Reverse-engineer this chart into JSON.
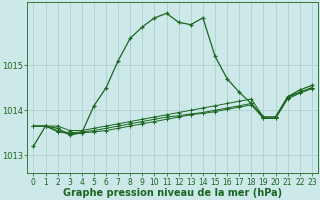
{
  "title": "Graphe pression niveau de la mer (hPa)",
  "xlabel_ticks": [
    0,
    1,
    2,
    3,
    4,
    5,
    6,
    7,
    8,
    9,
    10,
    11,
    12,
    13,
    14,
    15,
    16,
    17,
    18,
    19,
    20,
    21,
    22,
    23
  ],
  "yticks": [
    1013,
    1014,
    1015
  ],
  "ylim": [
    1012.6,
    1016.4
  ],
  "xlim": [
    -0.5,
    23.5
  ],
  "bg_color": "#cce8e8",
  "grid_color": "#aacccc",
  "line_color": "#1a6620",
  "title_color": "#1a6620",
  "title_fontsize": 7.0,
  "tick_fontsize": 5.5,
  "series": [
    [
      1013.2,
      1013.65,
      1013.6,
      1013.45,
      1013.5,
      1014.1,
      1014.5,
      1015.1,
      1015.6,
      1015.85,
      1016.05,
      1016.15,
      1015.95,
      1015.9,
      1016.05,
      1015.2,
      1014.7,
      1014.4,
      1014.15,
      1013.85,
      1013.85,
      1014.3,
      1014.45,
      1014.55
    ],
    [
      1013.65,
      1013.65,
      1013.65,
      1013.55,
      1013.55,
      1013.6,
      1013.65,
      1013.7,
      1013.75,
      1013.8,
      1013.85,
      1013.9,
      1013.95,
      1014.0,
      1014.05,
      1014.1,
      1014.15,
      1014.2,
      1014.25,
      1013.85,
      1013.85,
      1014.3,
      1014.4,
      1014.5
    ],
    [
      1013.65,
      1013.65,
      1013.55,
      1013.5,
      1013.52,
      1013.55,
      1013.6,
      1013.65,
      1013.7,
      1013.75,
      1013.8,
      1013.85,
      1013.88,
      1013.92,
      1013.95,
      1014.0,
      1014.05,
      1014.1,
      1014.15,
      1013.82,
      1013.82,
      1014.28,
      1014.4,
      1014.5
    ],
    [
      1013.65,
      1013.65,
      1013.52,
      1013.48,
      1013.5,
      1013.52,
      1013.55,
      1013.6,
      1013.65,
      1013.7,
      1013.75,
      1013.8,
      1013.85,
      1013.9,
      1013.93,
      1013.97,
      1014.02,
      1014.07,
      1014.12,
      1013.82,
      1013.82,
      1014.25,
      1014.38,
      1014.48
    ]
  ]
}
